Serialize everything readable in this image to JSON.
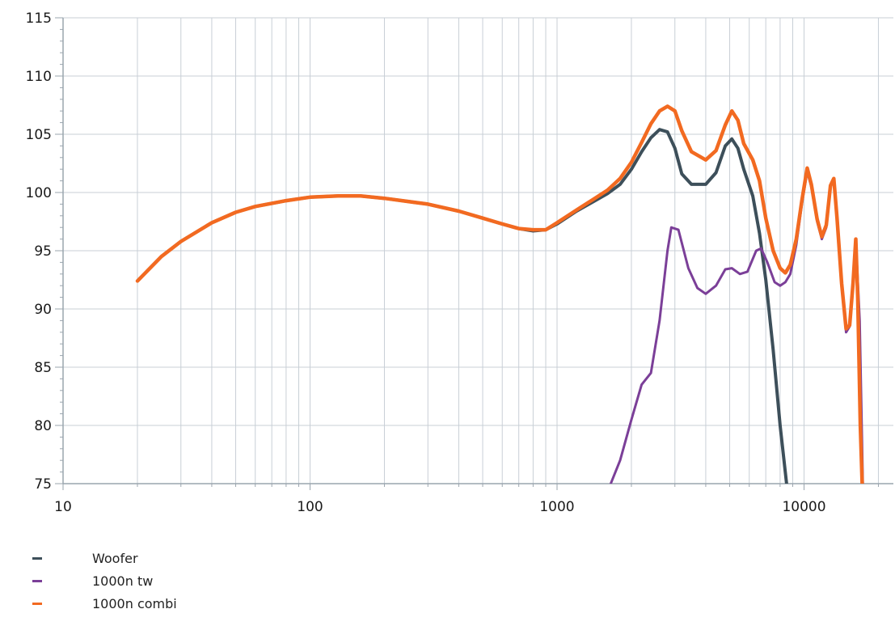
{
  "chart_data": {
    "type": "line",
    "x_scale": "log",
    "xlim": [
      10,
      23000
    ],
    "ylim": [
      75,
      115
    ],
    "x_ticks": [
      10,
      100,
      1000,
      10000
    ],
    "x_tick_labels": [
      "10",
      "100",
      "1000",
      "10000"
    ],
    "y_ticks": [
      75,
      80,
      85,
      90,
      95,
      100,
      105,
      110,
      115
    ],
    "y_tick_labels": [
      "75",
      "80",
      "85",
      "90",
      "95",
      "100",
      "105",
      "110",
      "115"
    ],
    "grid": true,
    "legend_position": "bottom-left",
    "series": [
      {
        "name": "Woofer",
        "color": "#3d4f5a",
        "points": [
          [
            20,
            92.4
          ],
          [
            25,
            94.5
          ],
          [
            30,
            95.8
          ],
          [
            40,
            97.4
          ],
          [
            50,
            98.3
          ],
          [
            60,
            98.8
          ],
          [
            80,
            99.3
          ],
          [
            100,
            99.6
          ],
          [
            130,
            99.7
          ],
          [
            160,
            99.7
          ],
          [
            200,
            99.5
          ],
          [
            300,
            99.0
          ],
          [
            400,
            98.4
          ],
          [
            500,
            97.8
          ],
          [
            600,
            97.3
          ],
          [
            700,
            96.9
          ],
          [
            800,
            96.7
          ],
          [
            900,
            96.8
          ],
          [
            1000,
            97.3
          ],
          [
            1200,
            98.4
          ],
          [
            1400,
            99.2
          ],
          [
            1600,
            99.9
          ],
          [
            1800,
            100.7
          ],
          [
            2000,
            102.0
          ],
          [
            2200,
            103.5
          ],
          [
            2400,
            104.7
          ],
          [
            2600,
            105.4
          ],
          [
            2800,
            105.2
          ],
          [
            3000,
            103.8
          ],
          [
            3200,
            101.6
          ],
          [
            3500,
            100.7
          ],
          [
            4000,
            100.7
          ],
          [
            4400,
            101.7
          ],
          [
            4800,
            104.0
          ],
          [
            5100,
            104.6
          ],
          [
            5400,
            103.8
          ],
          [
            5700,
            102.0
          ],
          [
            6200,
            99.7
          ],
          [
            6600,
            96.5
          ],
          [
            7000,
            92.5
          ],
          [
            7500,
            86.5
          ],
          [
            8000,
            80.0
          ],
          [
            8500,
            75.0
          ]
        ]
      },
      {
        "name": "1000n tw",
        "color": "#7b3f98",
        "points": [
          [
            1650,
            75.0
          ],
          [
            1800,
            77.0
          ],
          [
            2000,
            80.5
          ],
          [
            2200,
            83.5
          ],
          [
            2400,
            84.5
          ],
          [
            2600,
            89.0
          ],
          [
            2800,
            95.0
          ],
          [
            2900,
            97.0
          ],
          [
            3100,
            96.8
          ],
          [
            3400,
            93.5
          ],
          [
            3700,
            91.8
          ],
          [
            4000,
            91.3
          ],
          [
            4400,
            92.0
          ],
          [
            4800,
            93.4
          ],
          [
            5100,
            93.5
          ],
          [
            5500,
            93.0
          ],
          [
            5900,
            93.2
          ],
          [
            6400,
            95.0
          ],
          [
            6700,
            95.2
          ],
          [
            7100,
            94.0
          ],
          [
            7600,
            92.3
          ],
          [
            8000,
            92.0
          ],
          [
            8400,
            92.3
          ],
          [
            8800,
            93.0
          ],
          [
            9300,
            95.5
          ],
          [
            9800,
            99.0
          ],
          [
            10300,
            101.8
          ],
          [
            10700,
            100.5
          ],
          [
            11300,
            97.5
          ],
          [
            11800,
            96.0
          ],
          [
            12300,
            97.0
          ],
          [
            12800,
            100.5
          ],
          [
            13200,
            101.0
          ],
          [
            13600,
            97.5
          ],
          [
            14200,
            92.0
          ],
          [
            14800,
            88.0
          ],
          [
            15300,
            88.5
          ],
          [
            15800,
            92.0
          ],
          [
            16200,
            96.0
          ],
          [
            16800,
            89.0
          ],
          [
            17300,
            75.0
          ]
        ]
      },
      {
        "name": "1000n combi",
        "color": "#f26a21",
        "points": [
          [
            20,
            92.4
          ],
          [
            25,
            94.5
          ],
          [
            30,
            95.8
          ],
          [
            40,
            97.4
          ],
          [
            50,
            98.3
          ],
          [
            60,
            98.8
          ],
          [
            80,
            99.3
          ],
          [
            100,
            99.6
          ],
          [
            130,
            99.7
          ],
          [
            160,
            99.7
          ],
          [
            200,
            99.5
          ],
          [
            300,
            99.0
          ],
          [
            400,
            98.4
          ],
          [
            500,
            97.8
          ],
          [
            600,
            97.3
          ],
          [
            700,
            96.9
          ],
          [
            800,
            96.8
          ],
          [
            900,
            96.8
          ],
          [
            1000,
            97.4
          ],
          [
            1200,
            98.5
          ],
          [
            1400,
            99.4
          ],
          [
            1600,
            100.2
          ],
          [
            1800,
            101.2
          ],
          [
            2000,
            102.6
          ],
          [
            2200,
            104.3
          ],
          [
            2400,
            105.9
          ],
          [
            2600,
            107.0
          ],
          [
            2800,
            107.4
          ],
          [
            3000,
            107.0
          ],
          [
            3200,
            105.3
          ],
          [
            3500,
            103.5
          ],
          [
            4000,
            102.8
          ],
          [
            4400,
            103.6
          ],
          [
            4800,
            105.8
          ],
          [
            5100,
            107.0
          ],
          [
            5400,
            106.2
          ],
          [
            5700,
            104.2
          ],
          [
            6200,
            102.8
          ],
          [
            6600,
            101.0
          ],
          [
            7000,
            97.8
          ],
          [
            7500,
            95.0
          ],
          [
            8000,
            93.5
          ],
          [
            8400,
            93.1
          ],
          [
            8800,
            93.8
          ],
          [
            9300,
            96.0
          ],
          [
            9800,
            99.3
          ],
          [
            10300,
            102.1
          ],
          [
            10700,
            100.7
          ],
          [
            11300,
            97.7
          ],
          [
            11800,
            96.2
          ],
          [
            12300,
            97.2
          ],
          [
            12800,
            100.6
          ],
          [
            13200,
            101.2
          ],
          [
            13600,
            97.8
          ],
          [
            14200,
            92.2
          ],
          [
            14800,
            88.3
          ],
          [
            15300,
            88.6
          ],
          [
            15800,
            92.3
          ],
          [
            16200,
            96.0
          ],
          [
            16500,
            91.0
          ],
          [
            16900,
            80.0
          ],
          [
            17200,
            75.0
          ]
        ]
      }
    ]
  },
  "legend": {
    "items": [
      {
        "label": "Woofer",
        "color": "#3d4f5a"
      },
      {
        "label": "1000n tw",
        "color": "#7b3f98"
      },
      {
        "label": "1000n combi",
        "color": "#f26a21"
      }
    ]
  }
}
